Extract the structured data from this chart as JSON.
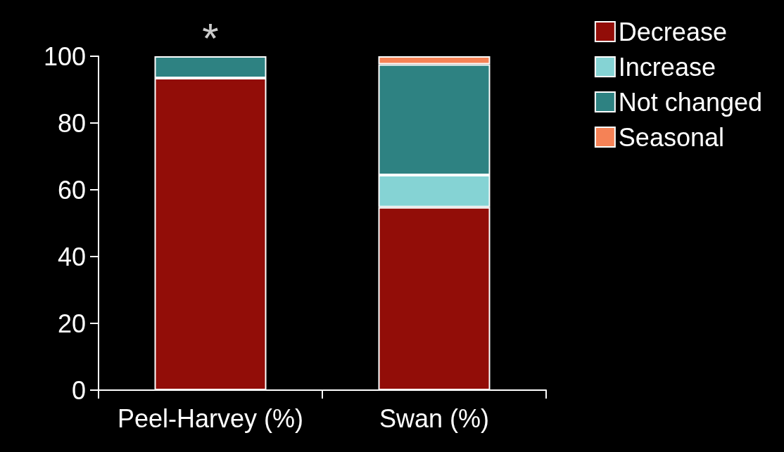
{
  "chart_data": {
    "type": "bar",
    "stacked": true,
    "categories": [
      "Peel-Harvey (%)",
      "Swan (%)"
    ],
    "series": [
      {
        "name": "Decrease",
        "color": "#920d08",
        "values": [
          93.5,
          54.8
        ]
      },
      {
        "name": "Increase",
        "color": "#85d3d4",
        "values": [
          0,
          9.6
        ]
      },
      {
        "name": "Not changed",
        "color": "#2e8282",
        "values": [
          6.5,
          33.2
        ]
      },
      {
        "name": "Seasonal",
        "color": "#f58256",
        "values": [
          0,
          2.4
        ]
      }
    ],
    "ylim": [
      0,
      100
    ],
    "yticks": [
      0,
      20,
      40,
      60,
      80,
      100
    ],
    "grid": false,
    "legend": "top right",
    "annotations": [
      {
        "text": "*",
        "x": "Peel-Harvey (%)",
        "y": 100
      }
    ]
  }
}
